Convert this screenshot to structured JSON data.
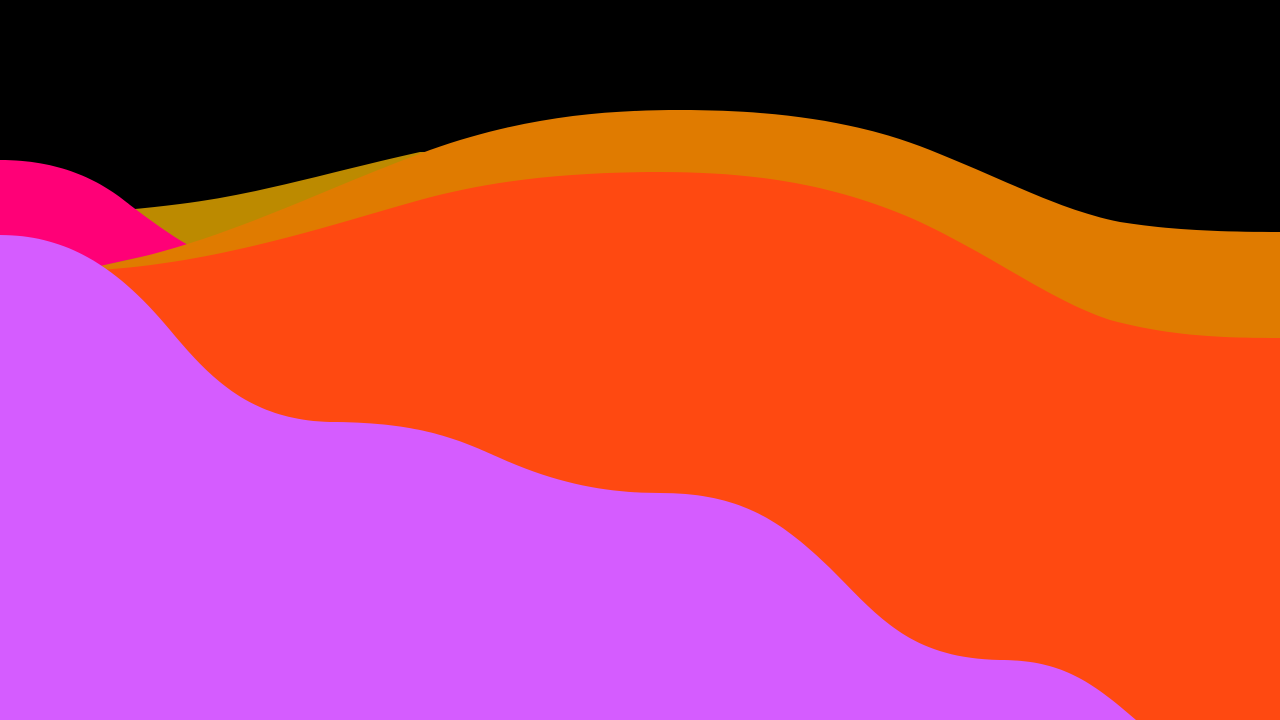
{
  "scene": {
    "background_color": "#000000",
    "layers": [
      {
        "name": "olive-wave",
        "color": "#bc8a00"
      },
      {
        "name": "pink-wave",
        "color": "#ff0077"
      },
      {
        "name": "orange-wave",
        "color": "#e07b00"
      },
      {
        "name": "red-orange-wave",
        "color": "#ff4911"
      },
      {
        "name": "violet-wave",
        "color": "#d55cff"
      }
    ]
  }
}
